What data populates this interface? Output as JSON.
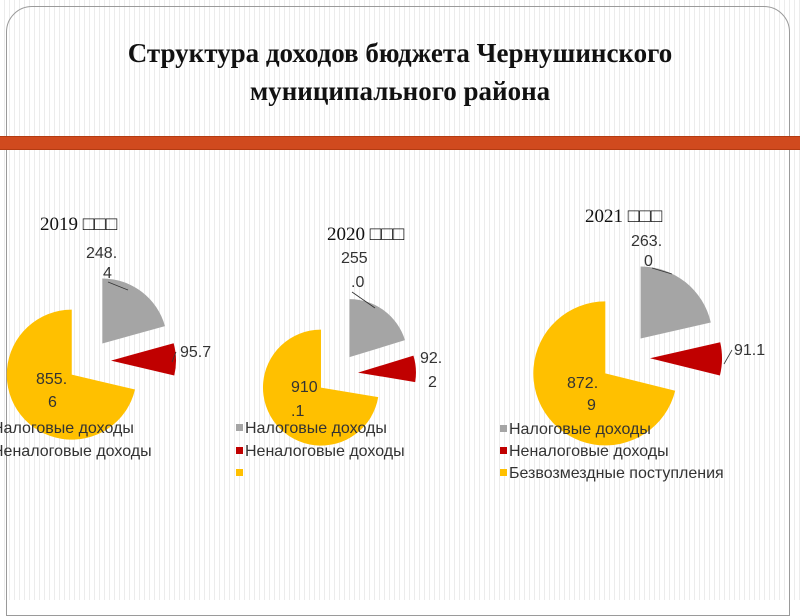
{
  "title": {
    "line1": "Структура доходов бюджета Чернушинского",
    "line2": "муниципального района"
  },
  "colors": {
    "tax": "#a5a5a5",
    "nontax": "#c00000",
    "free": "#ffc000",
    "band": "#d04a1e"
  },
  "chart_data": [
    {
      "type": "pie",
      "title": "2019 □□□",
      "categories": [
        "Налоговые доходы",
        "Неналоговые доходы",
        "Безвозмездные поступления"
      ],
      "values": [
        248.4,
        95.7,
        855.6
      ],
      "labels": [
        [
          "248.",
          "4"
        ],
        [
          "95.7"
        ],
        [
          "855.",
          "6"
        ]
      ],
      "legend": [
        "Налоговые доходы",
        "Неналоговые доходы",
        ""
      ],
      "legend_position": "bottom"
    },
    {
      "type": "pie",
      "title": "2020 □□□",
      "categories": [
        "Налоговые доходы",
        "Неналоговые доходы",
        "Безвозмездные поступления"
      ],
      "values": [
        255.0,
        92.2,
        910.1
      ],
      "labels": [
        [
          "255",
          ".0"
        ],
        [
          "92.",
          "2"
        ],
        [
          "910",
          ".1"
        ]
      ],
      "legend": [
        "Налоговые доходы",
        "Неналоговые доходы",
        ""
      ],
      "legend_position": "bottom"
    },
    {
      "type": "pie",
      "title": "2021 □□□",
      "categories": [
        "Налоговые доходы",
        "Неналоговые доходы",
        "Безвозмездные поступления"
      ],
      "values": [
        263.0,
        91.1,
        872.9
      ],
      "labels": [
        [
          "263.",
          "0"
        ],
        [
          "91.1"
        ],
        [
          "872.",
          "9"
        ]
      ],
      "legend": [
        "Налоговые доходы",
        "Неналоговые доходы",
        "Безвозмездные поступления"
      ],
      "legend_position": "bottom"
    }
  ]
}
